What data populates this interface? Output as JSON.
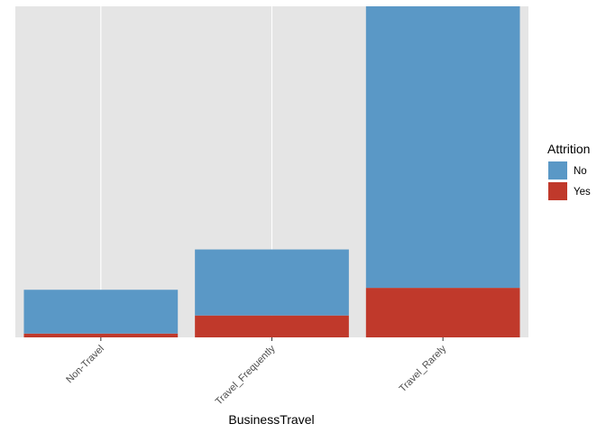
{
  "chart_data": {
    "type": "bar",
    "stacked": true,
    "categories": [
      "Non-Travel",
      "Travel_Frequently",
      "Travel_Rarely"
    ],
    "series": [
      {
        "name": "No",
        "values": [
          138,
          208,
          887
        ],
        "color": "#5a98c6"
      },
      {
        "name": "Yes",
        "values": [
          12,
          69,
          156
        ],
        "color": "#c0392b"
      }
    ],
    "xlabel": "BusinessTravel",
    "ylabel": "",
    "ylim": [
      0,
      1043
    ],
    "y_ticks_shown": false,
    "grid": true,
    "panel_background": "#e5e5e5",
    "legend": {
      "title": "Attrition",
      "position": "right"
    }
  }
}
